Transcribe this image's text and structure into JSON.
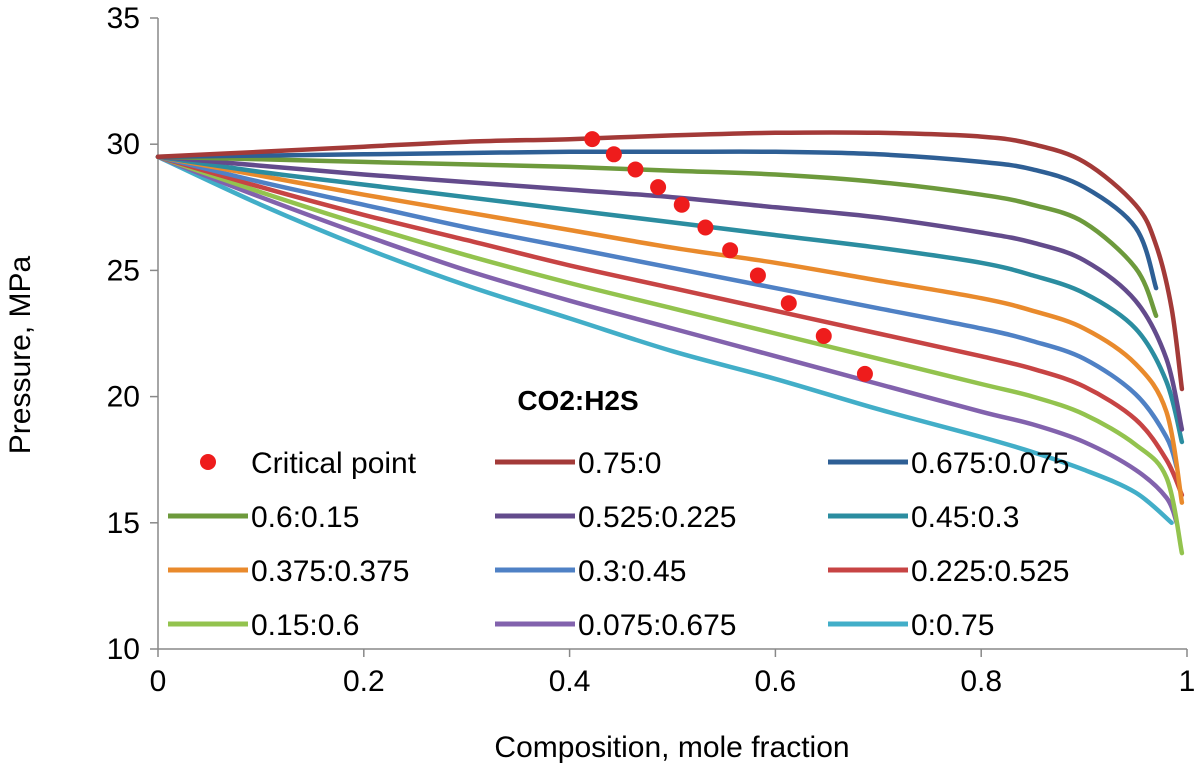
{
  "chart_data": {
    "type": "line",
    "xlabel": "Composition, mole fraction",
    "ylabel": "Pressure,   MPa",
    "xlim": [
      0,
      1
    ],
    "ylim": [
      10,
      35
    ],
    "xticks": [
      "0",
      "0.2",
      "0.4",
      "0.6",
      "0.8",
      "1"
    ],
    "xtick_values": [
      0,
      0.2,
      0.4,
      0.6,
      0.8,
      1
    ],
    "yticks": [
      "10",
      "15",
      "20",
      "25",
      "30",
      "35"
    ],
    "ytick_values": [
      10,
      15,
      20,
      25,
      30,
      35
    ],
    "grid": false,
    "legend_title": "CO2:H2S",
    "legend_position": "bottom-left, inside plot",
    "scatter": {
      "name": "Critical point",
      "color": "#ee1c1c",
      "points": [
        [
          0.422,
          30.2
        ],
        [
          0.443,
          29.6
        ],
        [
          0.464,
          29.0
        ],
        [
          0.486,
          28.3
        ],
        [
          0.509,
          27.6
        ],
        [
          0.532,
          26.7
        ],
        [
          0.556,
          25.8
        ],
        [
          0.583,
          24.8
        ],
        [
          0.613,
          23.7
        ],
        [
          0.647,
          22.4
        ],
        [
          0.687,
          20.9
        ]
      ]
    },
    "series": [
      {
        "name": "0.75:0",
        "color": "#a33a38",
        "points": [
          [
            0,
            29.5
          ],
          [
            0.1,
            29.7
          ],
          [
            0.2,
            29.9
          ],
          [
            0.3,
            30.1
          ],
          [
            0.4,
            30.2
          ],
          [
            0.5,
            30.35
          ],
          [
            0.6,
            30.45
          ],
          [
            0.7,
            30.45
          ],
          [
            0.8,
            30.3
          ],
          [
            0.85,
            30.0
          ],
          [
            0.9,
            29.3
          ],
          [
            0.95,
            27.6
          ],
          [
            0.97,
            26.0
          ],
          [
            0.985,
            23.5
          ],
          [
            0.995,
            20.3
          ]
        ]
      },
      {
        "name": "0.675:0.075",
        "color": "#2e5f95",
        "points": [
          [
            0,
            29.5
          ],
          [
            0.1,
            29.55
          ],
          [
            0.2,
            29.6
          ],
          [
            0.3,
            29.65
          ],
          [
            0.4,
            29.7
          ],
          [
            0.5,
            29.7
          ],
          [
            0.6,
            29.7
          ],
          [
            0.7,
            29.6
          ],
          [
            0.8,
            29.3
          ],
          [
            0.85,
            29.0
          ],
          [
            0.9,
            28.3
          ],
          [
            0.95,
            26.7
          ],
          [
            0.97,
            24.3
          ]
        ]
      },
      {
        "name": "0.6:0.15",
        "color": "#6d9a3c",
        "points": [
          [
            0,
            29.5
          ],
          [
            0.1,
            29.4
          ],
          [
            0.2,
            29.3
          ],
          [
            0.3,
            29.2
          ],
          [
            0.4,
            29.1
          ],
          [
            0.5,
            28.95
          ],
          [
            0.6,
            28.8
          ],
          [
            0.7,
            28.5
          ],
          [
            0.8,
            28.0
          ],
          [
            0.85,
            27.6
          ],
          [
            0.9,
            26.9
          ],
          [
            0.95,
            25.1
          ],
          [
            0.97,
            23.2
          ]
        ]
      },
      {
        "name": "0.525:0.225",
        "color": "#634b8c",
        "points": [
          [
            0,
            29.5
          ],
          [
            0.1,
            29.15
          ],
          [
            0.2,
            28.8
          ],
          [
            0.3,
            28.5
          ],
          [
            0.4,
            28.2
          ],
          [
            0.5,
            27.9
          ],
          [
            0.6,
            27.5
          ],
          [
            0.7,
            27.1
          ],
          [
            0.8,
            26.5
          ],
          [
            0.85,
            26.1
          ],
          [
            0.9,
            25.4
          ],
          [
            0.95,
            23.8
          ],
          [
            0.98,
            21.5
          ],
          [
            0.995,
            18.7
          ]
        ]
      },
      {
        "name": "0.45:0.3",
        "color": "#2b8da0",
        "points": [
          [
            0,
            29.5
          ],
          [
            0.1,
            28.9
          ],
          [
            0.2,
            28.4
          ],
          [
            0.3,
            27.9
          ],
          [
            0.4,
            27.4
          ],
          [
            0.5,
            26.9
          ],
          [
            0.6,
            26.4
          ],
          [
            0.7,
            25.9
          ],
          [
            0.8,
            25.3
          ],
          [
            0.85,
            24.8
          ],
          [
            0.9,
            24.1
          ],
          [
            0.95,
            22.7
          ],
          [
            0.98,
            20.6
          ],
          [
            0.995,
            18.2
          ]
        ]
      },
      {
        "name": "0.375:0.375",
        "color": "#e98a2c",
        "points": [
          [
            0,
            29.5
          ],
          [
            0.1,
            28.75
          ],
          [
            0.2,
            28.0
          ],
          [
            0.3,
            27.3
          ],
          [
            0.4,
            26.6
          ],
          [
            0.5,
            25.9
          ],
          [
            0.6,
            25.3
          ],
          [
            0.7,
            24.6
          ],
          [
            0.8,
            23.9
          ],
          [
            0.85,
            23.4
          ],
          [
            0.9,
            22.7
          ],
          [
            0.95,
            21.3
          ],
          [
            0.98,
            19.4
          ],
          [
            0.995,
            15.8
          ]
        ]
      },
      {
        "name": "0.3:0.45",
        "color": "#4f81c5",
        "points": [
          [
            0,
            29.5
          ],
          [
            0.1,
            28.5
          ],
          [
            0.2,
            27.6
          ],
          [
            0.3,
            26.7
          ],
          [
            0.4,
            25.9
          ],
          [
            0.5,
            25.1
          ],
          [
            0.6,
            24.3
          ],
          [
            0.7,
            23.5
          ],
          [
            0.8,
            22.7
          ],
          [
            0.85,
            22.2
          ],
          [
            0.9,
            21.5
          ],
          [
            0.95,
            20.1
          ],
          [
            0.98,
            18.4
          ],
          [
            0.99,
            17.2
          ]
        ]
      },
      {
        "name": "0.225:0.525",
        "color": "#c74444",
        "points": [
          [
            0,
            29.5
          ],
          [
            0.1,
            28.3
          ],
          [
            0.2,
            27.2
          ],
          [
            0.3,
            26.2
          ],
          [
            0.4,
            25.2
          ],
          [
            0.5,
            24.3
          ],
          [
            0.6,
            23.4
          ],
          [
            0.7,
            22.5
          ],
          [
            0.8,
            21.6
          ],
          [
            0.85,
            21.1
          ],
          [
            0.9,
            20.4
          ],
          [
            0.95,
            19.1
          ],
          [
            0.98,
            17.5
          ],
          [
            0.995,
            16.1
          ]
        ]
      },
      {
        "name": "0.15:0.6",
        "color": "#93c34e",
        "points": [
          [
            0,
            29.5
          ],
          [
            0.1,
            28.1
          ],
          [
            0.2,
            26.8
          ],
          [
            0.3,
            25.6
          ],
          [
            0.4,
            24.5
          ],
          [
            0.5,
            23.5
          ],
          [
            0.6,
            22.5
          ],
          [
            0.7,
            21.5
          ],
          [
            0.8,
            20.5
          ],
          [
            0.85,
            20.0
          ],
          [
            0.9,
            19.3
          ],
          [
            0.95,
            18.1
          ],
          [
            0.98,
            16.8
          ],
          [
            0.995,
            13.8
          ]
        ]
      },
      {
        "name": "0.075:0.675",
        "color": "#8262ad",
        "points": [
          [
            0,
            29.5
          ],
          [
            0.1,
            27.9
          ],
          [
            0.2,
            26.4
          ],
          [
            0.3,
            25.0
          ],
          [
            0.4,
            23.8
          ],
          [
            0.5,
            22.7
          ],
          [
            0.6,
            21.6
          ],
          [
            0.7,
            20.5
          ],
          [
            0.8,
            19.4
          ],
          [
            0.85,
            18.9
          ],
          [
            0.9,
            18.2
          ],
          [
            0.95,
            17.1
          ],
          [
            0.98,
            16.0
          ],
          [
            0.99,
            15.0
          ]
        ]
      },
      {
        "name": "0:0.75",
        "color": "#42aec8",
        "points": [
          [
            0,
            29.5
          ],
          [
            0.1,
            27.6
          ],
          [
            0.2,
            25.9
          ],
          [
            0.3,
            24.4
          ],
          [
            0.4,
            23.1
          ],
          [
            0.5,
            21.8
          ],
          [
            0.6,
            20.7
          ],
          [
            0.7,
            19.5
          ],
          [
            0.8,
            18.4
          ],
          [
            0.85,
            17.8
          ],
          [
            0.9,
            17.1
          ],
          [
            0.95,
            16.2
          ],
          [
            0.985,
            15.0
          ]
        ]
      }
    ]
  }
}
